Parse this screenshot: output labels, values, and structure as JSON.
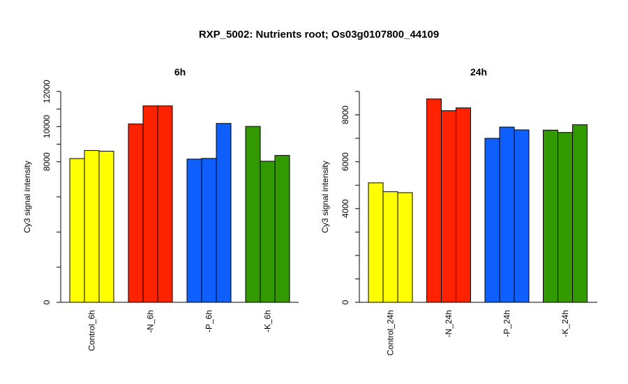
{
  "chart_data": {
    "title": "RXP_5002: Nutrients root; Os03g0107800_44109",
    "panels": [
      {
        "type": "bar",
        "title": "6h",
        "ylabel": "Cy3 signal intensity",
        "ylim": [
          0,
          12000
        ],
        "yticks": [
          0,
          8000,
          10000,
          12000
        ],
        "ytick_labels": [
          "0",
          "8000",
          "10000",
          "12000"
        ],
        "yminor_ticks": [
          0,
          2000,
          4000,
          6000,
          8000,
          9000,
          10000,
          11000,
          12000
        ],
        "groups": [
          {
            "label": "Control_6h",
            "color": "#FFFF00",
            "values": [
              8180,
              8640,
              8600
            ]
          },
          {
            "label": "-N_6h",
            "color": "#FF2200",
            "values": [
              10150,
              11180,
              11180
            ]
          },
          {
            "label": "-P_6h",
            "color": "#0F5FFF",
            "values": [
              8150,
              8190,
              10180
            ]
          },
          {
            "label": "-K_6h",
            "color": "#339900",
            "values": [
              10010,
              8030,
              8360
            ]
          }
        ]
      },
      {
        "type": "bar",
        "title": "24h",
        "ylabel": "Cy3 signal intensity",
        "ylim": [
          0,
          9000
        ],
        "yticks": [
          0,
          4000,
          6000,
          8000
        ],
        "ytick_labels": [
          "0",
          "4000",
          "6000",
          "8000"
        ],
        "yminor_ticks": [
          0,
          1000,
          2000,
          3000,
          4000,
          5000,
          6000,
          7000,
          8000,
          9000
        ],
        "groups": [
          {
            "label": "Control_24h",
            "color": "#FFFF00",
            "values": [
              5100,
              4720,
              4680
            ]
          },
          {
            "label": "-N_24h",
            "color": "#FF2200",
            "values": [
              8680,
              8180,
              8300
            ]
          },
          {
            "label": "-P_24h",
            "color": "#0F5FFF",
            "values": [
              7000,
              7480,
              7360
            ]
          },
          {
            "label": "-K_24h",
            "color": "#339900",
            "values": [
              7350,
              7250,
              7580
            ]
          }
        ]
      }
    ]
  }
}
